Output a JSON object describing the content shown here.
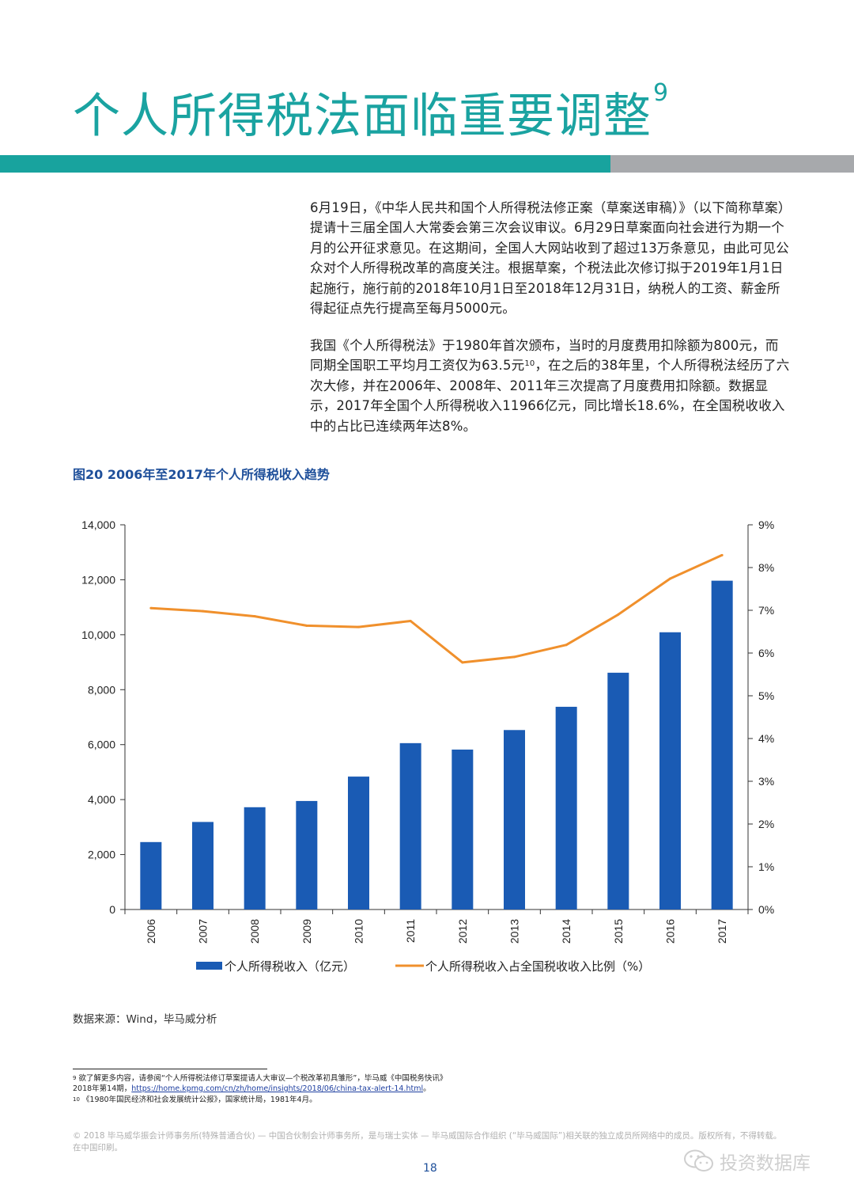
{
  "header": {
    "title": "个人所得税法面临重要调整",
    "title_sup": "9",
    "color_teal": "#18a39e",
    "color_gray": "#a7a9ac"
  },
  "body": {
    "para1": "6月19日，《中华人民共和国个人所得税法修正案（草案送审稿）》（以下简称草案）提请十三届全国人大常委会第三次会议审议。6月29日草案面向社会进行为期一个月的公开征求意见。在这期间，全国人大网站收到了超过13万条意见，由此可见公众对个人所得税改革的高度关注。根据草案，个税法此次修订拟于2019年1月1日起施行，施行前的2018年10月1日至2018年12月31日，纳税人的工资、薪金所得起征点先行提高至每月5000元。",
    "para2_a": "我国《个人所得税法》于1980年首次颁布，当时的月度费用扣除额为800元，而同期全国职工平均月工资仅为63.5元",
    "para2_sup": "10",
    "para2_b": "，在之后的38年里，个人所得税法经历了六次大修，并在2006年、2008年、2011年三次提高了月度费用扣除额。数据显示，2017年全国个人所得税收入11966亿元，同比增长18.6%，在全国税收收入中的占比已连续两年达8%。"
  },
  "figure": {
    "title": "图20 2006年至2017年个人所得税收入趋势",
    "source": "数据来源：Wind，毕马威分析"
  },
  "chart_data": {
    "type": "bar+line",
    "categories": [
      "2006",
      "2007",
      "2008",
      "2009",
      "2010",
      "2011",
      "2012",
      "2013",
      "2014",
      "2015",
      "2016",
      "2017"
    ],
    "series": [
      {
        "name": "个人所得税收入（亿元）",
        "kind": "bar",
        "axis": "left",
        "color": "#1a5bb4",
        "values": [
          2454,
          3186,
          3722,
          3949,
          4837,
          6054,
          5820,
          6531,
          7377,
          8617,
          10089,
          11966
        ]
      },
      {
        "name": "个人所得税收入占全国税收收入比例（%）",
        "kind": "line",
        "axis": "right",
        "color": "#f0902c",
        "values": [
          7.05,
          6.98,
          6.86,
          6.64,
          6.61,
          6.75,
          5.78,
          5.91,
          6.19,
          6.9,
          7.74,
          8.29
        ]
      }
    ],
    "left_axis": {
      "min": 0,
      "max": 14000,
      "ticks": [
        "0",
        "2,000",
        "4,000",
        "6,000",
        "8,000",
        "10,000",
        "12,000",
        "14,000"
      ]
    },
    "right_axis": {
      "min": 0,
      "max": 9,
      "ticks": [
        "0%",
        "1%",
        "2%",
        "3%",
        "4%",
        "5%",
        "6%",
        "7%",
        "8%",
        "9%"
      ]
    },
    "legend_position": "bottom"
  },
  "footnotes": {
    "fn9_num": "9",
    "fn9_text": "欲了解更多内容，请参阅“个人所得税法修订草案提请人大审议—个税改革初具雏形”，毕马威《中国税务快讯》2018年第14期，",
    "fn9_link": "https://home.kpmg.com/cn/zh/home/insights/2018/06/china-tax-alert-14.html",
    "fn9_end": "。",
    "fn10_num": "10",
    "fn10_text": "《1980年国民经济和社会发展统计公报》，国家统计局，1981年4月。"
  },
  "footer": {
    "copyright": "© 2018 毕马威华振会计师事务所(特殊普通合伙) — 中国合伙制会计师事务所，是与瑞士实体 — 毕马威国际合作组织 (“毕马威国际”)相关联的独立成员所网络中的成员。版权所有，不得转载。在中国印刷。",
    "page_number": "18",
    "watermark": "投资数据库"
  }
}
